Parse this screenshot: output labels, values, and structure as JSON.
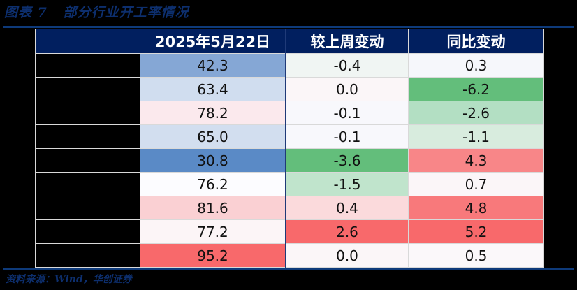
{
  "title": "图表 7   部分行业开工率情况",
  "table": {
    "headers": [
      "",
      "2025年5月22日",
      "较上周变动",
      "同比变动"
    ],
    "rows": [
      {
        "name": "",
        "value": "42.3",
        "wow": "-0.4",
        "yoy": "0.3",
        "value_color": "#85a7d5",
        "wow_color": "#f0f5f3",
        "yoy_color": "#f6f7fb"
      },
      {
        "name": "",
        "value": "63.4",
        "wow": "0.0",
        "yoy": "-6.2",
        "value_color": "#d0ddef",
        "wow_color": "#fbf6f8",
        "yoy_color": "#63be7b"
      },
      {
        "name": "",
        "value": "78.2",
        "wow": "-0.1",
        "yoy": "-2.6",
        "value_color": "#fbe9ed",
        "wow_color": "#f8f8fc",
        "yoy_color": "#b3dfc3"
      },
      {
        "name": "",
        "value": "65.0",
        "wow": "-0.1",
        "yoy": "-1.1",
        "value_color": "#d2deef",
        "wow_color": "#f8f8fc",
        "yoy_color": "#d8ecde"
      },
      {
        "name": "",
        "value": "30.8",
        "wow": "-3.6",
        "yoy": "4.3",
        "value_color": "#5a8ac6",
        "wow_color": "#63be7b",
        "yoy_color": "#f88688"
      },
      {
        "name": "",
        "value": "76.2",
        "wow": "-1.5",
        "yoy": "0.7",
        "value_color": "#fcfcff",
        "wow_color": "#c0e4cc",
        "yoy_color": "#fbf6f8"
      },
      {
        "name": "",
        "value": "81.6",
        "wow": "0.4",
        "yoy": "4.8",
        "value_color": "#fad0d3",
        "wow_color": "#fbdadc",
        "yoy_color": "#f8797b"
      },
      {
        "name": "",
        "value": "77.2",
        "wow": "2.6",
        "yoy": "5.2",
        "value_color": "#fcf5f7",
        "wow_color": "#f8696b",
        "yoy_color": "#f8696b"
      },
      {
        "name": "",
        "value": "95.2",
        "wow": "0.0",
        "yoy": "0.5",
        "value_color": "#f8696b",
        "wow_color": "#fbf6f8",
        "yoy_color": "#fbf8fa"
      }
    ]
  },
  "source": "资料来源：Wind，华创证券"
}
